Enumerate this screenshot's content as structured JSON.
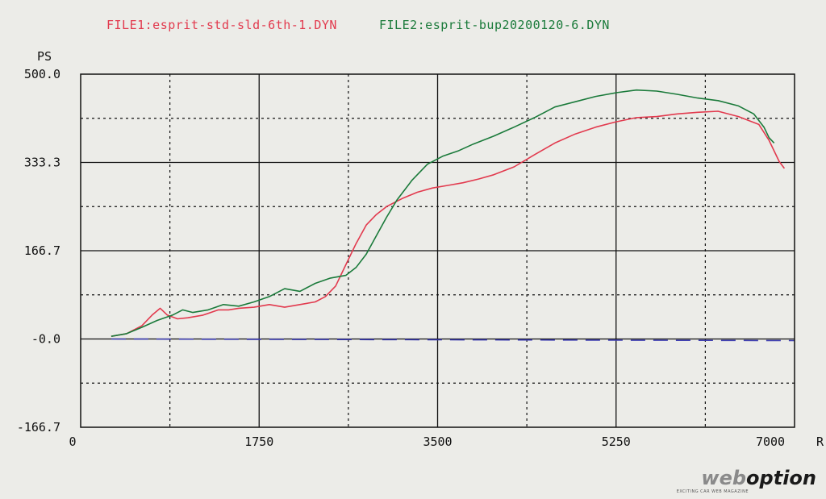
{
  "chart_data": {
    "type": "line",
    "ylabel": "PS",
    "xlabel": "R",
    "xlim": [
      0,
      7000
    ],
    "ylim": [
      -166.7,
      500.0
    ],
    "x_ticks": [
      "0",
      "1750",
      "3500",
      "5250",
      "7000"
    ],
    "y_ticks": [
      "500.0",
      "333.3",
      "166.7",
      "-0.0",
      "-166.7"
    ],
    "grid": "solid major lines with dotted minor lines",
    "legend_position": "top",
    "series": [
      {
        "name": "FILE1:esprit-std-sld-6th-1.DYN",
        "color": "#e23a4e",
        "x": [
          300,
          450,
          600,
          700,
          780,
          850,
          950,
          1050,
          1200,
          1350,
          1450,
          1550,
          1700,
          1850,
          2000,
          2150,
          2300,
          2400,
          2500,
          2600,
          2700,
          2800,
          2900,
          3000,
          3150,
          3300,
          3450,
          3600,
          3750,
          3900,
          4050,
          4250,
          4450,
          4650,
          4850,
          5050,
          5250,
          5450,
          5650,
          5850,
          6050,
          6250,
          6450,
          6650,
          6750,
          6850,
          6900
        ],
        "y": [
          5,
          10,
          25,
          45,
          58,
          45,
          38,
          40,
          45,
          55,
          55,
          58,
          60,
          65,
          60,
          65,
          70,
          80,
          100,
          140,
          180,
          215,
          235,
          250,
          265,
          277,
          285,
          290,
          295,
          302,
          310,
          325,
          348,
          370,
          387,
          400,
          410,
          418,
          420,
          425,
          428,
          430,
          420,
          405,
          375,
          335,
          322
        ]
      },
      {
        "name": "FILE2:esprit-bup20200120-6.DYN",
        "color": "#1a7a3a",
        "x": [
          300,
          450,
          600,
          750,
          900,
          1000,
          1100,
          1250,
          1400,
          1550,
          1700,
          1850,
          2000,
          2150,
          2300,
          2450,
          2600,
          2700,
          2800,
          2900,
          3000,
          3100,
          3250,
          3400,
          3550,
          3700,
          3850,
          4050,
          4250,
          4450,
          4650,
          4850,
          5050,
          5250,
          5450,
          5650,
          5850,
          6050,
          6250,
          6450,
          6600,
          6700,
          6750,
          6800
        ],
        "y": [
          5,
          10,
          22,
          35,
          45,
          55,
          50,
          55,
          65,
          62,
          70,
          80,
          95,
          90,
          105,
          115,
          120,
          135,
          160,
          195,
          230,
          262,
          300,
          330,
          345,
          355,
          368,
          383,
          400,
          418,
          438,
          448,
          458,
          465,
          470,
          468,
          462,
          455,
          450,
          440,
          425,
          400,
          380,
          370
        ]
      },
      {
        "name": "",
        "color": "#3c3cb0",
        "dashed": true,
        "x": [
          300,
          7000
        ],
        "y": [
          0,
          -3
        ]
      }
    ]
  },
  "watermark": {
    "web": "web",
    "option": "option",
    "sub": "EXCITING CAR WEB MAGAZINE"
  }
}
